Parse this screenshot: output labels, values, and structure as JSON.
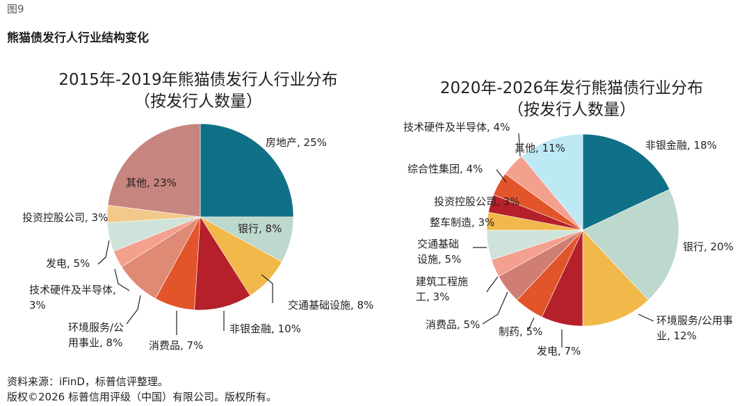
{
  "figure": {
    "label": "图9",
    "title": "熊猫债发行人行业结构变化"
  },
  "colors": {
    "teal": "#0f7088",
    "mint": "#bdd8cc",
    "gold": "#f1b84a",
    "crimson": "#b5202a",
    "orange": "#e2542a",
    "terracotta": "#de8a74",
    "salmon": "#f4a08e",
    "rose": "#d07e73",
    "lightmint": "#cfe3da",
    "peach": "#f3c98b",
    "dusty_rose": "#c6857e",
    "sky": "#bde9f5"
  },
  "chart_data": [
    {
      "type": "pie",
      "title": "2015年-2019年熊猫债发行人行业分布",
      "subtitle": "（按发行人数量）",
      "slices": [
        {
          "name": "房地产",
          "value": 25,
          "label": "房地产, 25%",
          "color": "#0f7088"
        },
        {
          "name": "银行",
          "value": 8,
          "label": "银行, 8%",
          "color": "#bdd8cc"
        },
        {
          "name": "交通基础设施",
          "value": 8,
          "label": "交通基础设施, 8%",
          "color": "#f1b84a"
        },
        {
          "name": "非银金融",
          "value": 10,
          "label": "非银金融, 10%",
          "color": "#b5202a"
        },
        {
          "name": "消费品",
          "value": 7,
          "label": "消费品, 7%",
          "color": "#e2542a"
        },
        {
          "name": "环境服务/公用事业",
          "value": 8,
          "label": "环境服务/公\n用事业, 8%",
          "color": "#de8a74"
        },
        {
          "name": "技术硬件及半导体",
          "value": 3,
          "label": "技术硬件及半导体,\n3%",
          "color": "#f4a08e"
        },
        {
          "name": "发电",
          "value": 5,
          "label": "发电, 5%",
          "color": "#cfe3da"
        },
        {
          "name": "投资控股公司",
          "value": 3,
          "label": "投资控股公司, 3%",
          "color": "#f3c98b"
        },
        {
          "name": "其他",
          "value": 23,
          "label": "其他, 23%",
          "color": "#c6857e"
        }
      ]
    },
    {
      "type": "pie",
      "title": "2020年-2026年发行熊猫债行业分布",
      "subtitle": "（按发行人数量）",
      "slices": [
        {
          "name": "非银金融",
          "value": 18,
          "label": "非银金融, 18%",
          "color": "#0f7088"
        },
        {
          "name": "银行",
          "value": 20,
          "label": "银行, 20%",
          "color": "#bdd8cc"
        },
        {
          "name": "环境服务/公用事业",
          "value": 12,
          "label": "环境服务/公用事\n业, 12%",
          "color": "#f1b84a"
        },
        {
          "name": "发电",
          "value": 7,
          "label": "发电, 7%",
          "color": "#b5202a"
        },
        {
          "name": "制药",
          "value": 5,
          "label": "制药, 5%",
          "color": "#e2542a"
        },
        {
          "name": "消费品",
          "value": 5,
          "label": "消费品, 5%",
          "color": "#d07e73"
        },
        {
          "name": "建筑工程施工",
          "value": 3,
          "label": "建筑工程施\n工, 3%",
          "color": "#f4a08e"
        },
        {
          "name": "交通基础设施",
          "value": 5,
          "label": "交通基础\n设施, 5%",
          "color": "#cfe3da"
        },
        {
          "name": "整车制造",
          "value": 3,
          "label": "整车制造, 3%",
          "color": "#f1b84a"
        },
        {
          "name": "投资控股公司",
          "value": 3,
          "label": "投资控股公司, 3%",
          "color": "#b5202a"
        },
        {
          "name": "综合性集团",
          "value": 4,
          "label": "综合性集团, 4%",
          "color": "#e2542a"
        },
        {
          "name": "技术硬件及半导体",
          "value": 4,
          "label": "技术硬件及半导体, 4%",
          "color": "#f4a08e"
        },
        {
          "name": "其他",
          "value": 11,
          "label": "其他, 11%",
          "color": "#bde9f5"
        }
      ]
    }
  ],
  "footer": {
    "source": "资料来源：iFinD，标普信评整理。",
    "copyright": "版权©2026 标普信用评级（中国）有限公司。版权所有。"
  }
}
